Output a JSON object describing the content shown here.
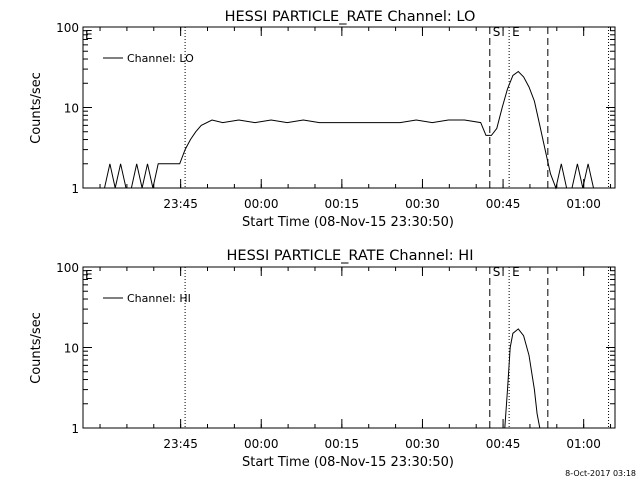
{
  "footer_timestamp": "8-Oct-2017 03:18",
  "chart_data": [
    {
      "type": "line",
      "title": "HESSI PARTICLE_RATE Channel: LO",
      "ylabel": "Counts/sec",
      "xlabel": "Start Time (08-Nov-15 23:30:50)",
      "yscale": "log",
      "ylim": [
        1,
        100
      ],
      "yticks": [
        "1",
        "10",
        "100"
      ],
      "xlim_minutes_since_start": [
        -4,
        95
      ],
      "xticks": [
        {
          "label": "23:45",
          "minute": 14.17
        },
        {
          "label": "00:00",
          "minute": 29.17
        },
        {
          "label": "00:15",
          "minute": 44.17
        },
        {
          "label": "00:30",
          "minute": 59.17
        },
        {
          "label": "00:45",
          "minute": 74.17
        },
        {
          "label": "01:00",
          "minute": 89.17
        }
      ],
      "legend": {
        "label": "Channel: LO",
        "position": "top-left"
      },
      "markers": {
        "E_left": "E",
        "S": "S",
        "E": "E"
      },
      "lines": {
        "dotted": [
          15,
          75.3,
          93.8
        ],
        "dashed": [
          71.7,
          82.5
        ]
      },
      "series": [
        {
          "name": "Channel: LO",
          "x": [
            0,
            1,
            2,
            3,
            4,
            5,
            6,
            7,
            8,
            9,
            10,
            11,
            12,
            13,
            14,
            15,
            16,
            17,
            18,
            20,
            22,
            25,
            28,
            31,
            34,
            37,
            40,
            43,
            46,
            49,
            52,
            55,
            58,
            61,
            64,
            67,
            70,
            71,
            72,
            73,
            74,
            75,
            76,
            77,
            78,
            79,
            80,
            81,
            82,
            83,
            84,
            85,
            86,
            87,
            88,
            89,
            90,
            91,
            92
          ],
          "y": [
            1,
            2,
            1,
            2,
            1,
            1,
            2,
            1,
            2,
            1,
            2,
            2,
            2,
            2,
            2,
            3,
            4,
            5,
            6,
            7,
            6.5,
            7,
            6.5,
            7,
            6.5,
            7,
            6.5,
            6.5,
            6.5,
            6.5,
            6.5,
            6.5,
            7,
            6.5,
            7,
            7,
            6.5,
            4.5,
            4.5,
            5.5,
            10,
            17,
            25,
            28,
            24,
            18,
            12,
            6,
            3,
            1.5,
            1,
            2,
            1,
            1,
            2,
            1,
            2,
            1,
            1
          ]
        }
      ]
    },
    {
      "type": "line",
      "title": "HESSI PARTICLE_RATE Channel: HI",
      "ylabel": "Counts/sec",
      "xlabel": "Start Time (08-Nov-15 23:30:50)",
      "yscale": "log",
      "ylim": [
        1,
        100
      ],
      "yticks": [
        "1",
        "10",
        "100"
      ],
      "xlim_minutes_since_start": [
        -4,
        95
      ],
      "xticks": [
        {
          "label": "23:45",
          "minute": 14.17
        },
        {
          "label": "00:00",
          "minute": 29.17
        },
        {
          "label": "00:15",
          "minute": 44.17
        },
        {
          "label": "00:30",
          "minute": 59.17
        },
        {
          "label": "00:45",
          "minute": 74.17
        },
        {
          "label": "01:00",
          "minute": 89.17
        }
      ],
      "legend": {
        "label": "Channel: HI",
        "position": "top-left"
      },
      "markers": {
        "E_left": "E",
        "S": "S",
        "E": "E"
      },
      "lines": {
        "dotted": [
          15,
          75.3,
          93.8
        ],
        "dashed": [
          71.7,
          82.5
        ]
      },
      "series": [
        {
          "name": "Channel: HI",
          "x": [
            74.5,
            75,
            75.5,
            76,
            77,
            78,
            79,
            80,
            80.5,
            81
          ],
          "y": [
            1,
            3,
            10,
            15,
            17,
            14,
            8,
            3,
            1.5,
            1
          ]
        }
      ]
    }
  ]
}
